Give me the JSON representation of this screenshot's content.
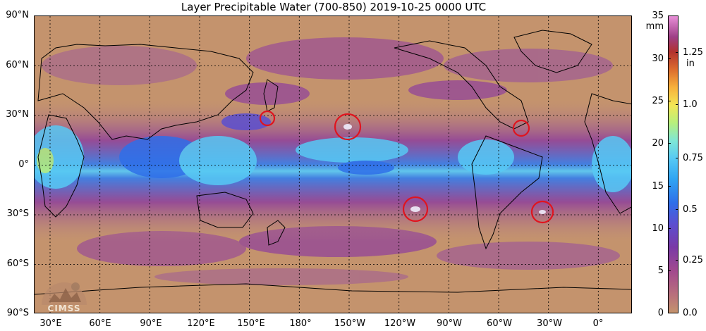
{
  "title": "Layer Precipitable Water (700-850)  2019-10-25 0000 UTC",
  "lat_labels": [
    "90°N",
    "60°N",
    "30°N",
    "0°",
    "30°S",
    "60°S",
    "90°S"
  ],
  "lon_labels": [
    "30°E",
    "60°E",
    "90°E",
    "120°E",
    "150°E",
    "180°",
    "150°W",
    "120°W",
    "90°W",
    "60°W",
    "30°W",
    "0°"
  ],
  "colorbar": {
    "unit_left": "mm",
    "unit_right": "in",
    "mm_ticks": [
      "35",
      "30",
      "25",
      "20",
      "15",
      "10",
      "5",
      "0"
    ],
    "in_ticks": [
      "1.25",
      "1.0",
      "0.75",
      "0.5",
      "0.25",
      "0.0"
    ],
    "range_mm": [
      0,
      35
    ]
  },
  "logo": {
    "text": "CIMSS"
  },
  "colors": {
    "background_dry": "#c4936d",
    "moist": "#8a3fa0",
    "very_moist": "#4aa7f0",
    "circle": "#e0141e"
  }
}
